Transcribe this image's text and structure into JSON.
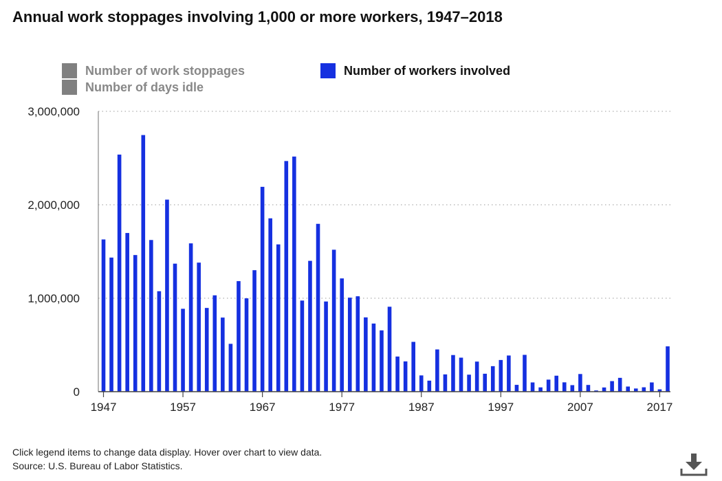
{
  "title": "Annual work stoppages involving 1,000 or more workers, 1947–2018",
  "legend": {
    "stoppages": "Number of work stoppages",
    "days_idle": "Number of days idle",
    "workers": "Number of workers involved"
  },
  "footnote": {
    "instructions": "Click legend items to change data display. Hover over chart to view data.",
    "source": "Source: U.S. Bureau of Labor Statistics."
  },
  "icons": {
    "download": "download-icon"
  },
  "colors": {
    "series": "#1530e0",
    "inactive_legend": "#808080"
  },
  "chart_data": {
    "type": "bar",
    "title": "Annual work stoppages involving 1,000 or more workers, 1947–2018",
    "ylim": [
      0,
      3000000
    ],
    "y_ticks": [
      0,
      1000000,
      2000000,
      3000000
    ],
    "y_tick_labels": [
      "0",
      "1,000,000",
      "2,000,000",
      "3,000,000"
    ],
    "x_tick_labels": [
      "1947",
      "1957",
      "1967",
      "1977",
      "1987",
      "1997",
      "2007",
      "2017"
    ],
    "grid": "horizontal dotted",
    "legend_position": "top",
    "categories": [
      1947,
      1948,
      1949,
      1950,
      1951,
      1952,
      1953,
      1954,
      1955,
      1956,
      1957,
      1958,
      1959,
      1960,
      1961,
      1962,
      1963,
      1964,
      1965,
      1966,
      1967,
      1968,
      1969,
      1970,
      1971,
      1972,
      1973,
      1974,
      1975,
      1976,
      1977,
      1978,
      1979,
      1980,
      1981,
      1982,
      1983,
      1984,
      1985,
      1986,
      1987,
      1988,
      1989,
      1990,
      1991,
      1992,
      1993,
      1994,
      1995,
      1996,
      1997,
      1998,
      1999,
      2000,
      2001,
      2002,
      2003,
      2004,
      2005,
      2006,
      2007,
      2008,
      2009,
      2010,
      2011,
      2012,
      2013,
      2014,
      2015,
      2016,
      2017,
      2018
    ],
    "series": [
      {
        "name": "Number of workers involved",
        "values": [
          1629000,
          1435000,
          2537000,
          1698000,
          1462000,
          2746000,
          1623000,
          1075000,
          2055000,
          1370000,
          887000,
          1587000,
          1381000,
          896000,
          1031000,
          793000,
          512000,
          1183000,
          999000,
          1300000,
          2192000,
          1855000,
          1576000,
          2468000,
          2516000,
          975000,
          1400000,
          1796000,
          965000,
          1519000,
          1212000,
          1006000,
          1021000,
          795000,
          729000,
          656000,
          909000,
          376000,
          324000,
          533000,
          174000,
          118000,
          452000,
          185000,
          392000,
          364000,
          182000,
          322000,
          192000,
          273000,
          339000,
          387000,
          73000,
          394000,
          99000,
          46000,
          129000,
          171000,
          100000,
          70000,
          189000,
          72000,
          13000,
          45000,
          113000,
          148000,
          55000,
          34000,
          47000,
          99000,
          25000,
          485000
        ]
      }
    ]
  }
}
